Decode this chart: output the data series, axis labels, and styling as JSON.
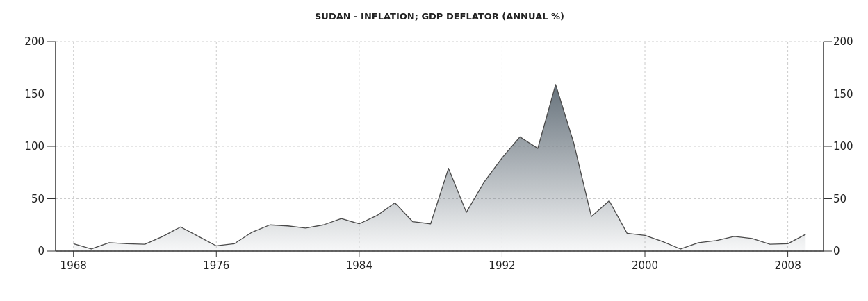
{
  "chart_data": {
    "type": "area",
    "title": "SUDAN - INFLATION; GDP DEFLATOR (ANNUAL %)",
    "x": [
      1968,
      1969,
      1970,
      1971,
      1972,
      1973,
      1974,
      1975,
      1976,
      1977,
      1978,
      1979,
      1980,
      1981,
      1982,
      1983,
      1984,
      1985,
      1986,
      1987,
      1988,
      1989,
      1990,
      1991,
      1992,
      1993,
      1994,
      1995,
      1996,
      1997,
      1998,
      1999,
      2000,
      2001,
      2002,
      2003,
      2004,
      2005,
      2006,
      2007,
      2008,
      2009
    ],
    "series": [
      {
        "color": "#5f6b75",
        "values": [
          7,
          2,
          8,
          7,
          6.5,
          14,
          23,
          14,
          5,
          7,
          18,
          25,
          24,
          22,
          25,
          31,
          26,
          34,
          46,
          28,
          26,
          79,
          37,
          66,
          89,
          109,
          98,
          159,
          104,
          33,
          48,
          17,
          15,
          9,
          2,
          8,
          10,
          14,
          12,
          6.5,
          7,
          16
        ]
      }
    ],
    "xlim": [
      1967,
      2010
    ],
    "xticks": [
      1968,
      1976,
      1984,
      1992,
      2000,
      2008
    ],
    "ylim": [
      0,
      200
    ],
    "yticks": [
      0,
      50,
      100,
      150,
      200
    ],
    "y2lim": [
      0,
      200
    ],
    "y2ticks": [
      0,
      50,
      100,
      150,
      200
    ],
    "grid": true,
    "line_style": "solid"
  }
}
